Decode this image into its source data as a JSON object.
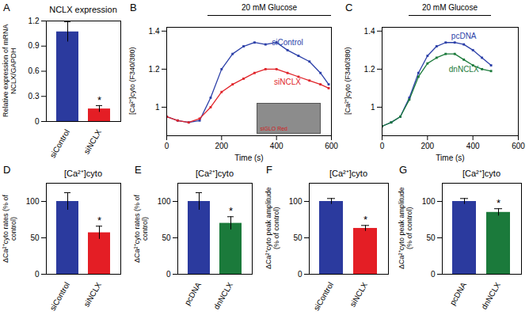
{
  "chart_data": [
    {
      "type": "bar",
      "panel_label": "A",
      "title": "NCLX expression",
      "y_label": "Relative expression of mRNA NCLX/GAPDH",
      "categories": [
        "siControl",
        "siNCLX"
      ],
      "values": [
        1.07,
        0.15
      ],
      "errors": [
        0.12,
        0.04
      ],
      "significance": [
        null,
        "*"
      ],
      "colors": [
        "#2b3a9e",
        "#e41e25"
      ],
      "ylim": [
        0,
        1.2
      ],
      "yticks": [
        0,
        0.3,
        0.6,
        0.9,
        1.2
      ]
    },
    {
      "type": "line",
      "panel_label": "B",
      "y_label": "[Ca²⁺]cyto (F340/380)",
      "x_label": "Time (s)",
      "stimulus": {
        "text": "20 mM Glucose",
        "start": 150,
        "end": 600
      },
      "inset": "siGLO Red",
      "x": [
        0,
        40,
        80,
        120,
        160,
        200,
        240,
        280,
        320,
        360,
        400,
        440,
        480,
        520,
        560,
        590
      ],
      "series": [
        {
          "name": "siControl",
          "color": "#2b3fa8",
          "marker": "square",
          "values": [
            0.95,
            0.93,
            0.92,
            0.93,
            1.05,
            1.2,
            1.28,
            1.32,
            1.34,
            1.33,
            1.34,
            1.3,
            1.27,
            1.24,
            1.18,
            1.12
          ]
        },
        {
          "name": "siNCLX",
          "color": "#e0242a",
          "marker": "square",
          "values": [
            0.95,
            0.93,
            0.92,
            0.94,
            1.0,
            1.08,
            1.12,
            1.15,
            1.18,
            1.2,
            1.2,
            1.18,
            1.16,
            1.14,
            1.12,
            1.1
          ]
        }
      ],
      "xlim": [
        0,
        600
      ],
      "xticks": [
        0,
        200,
        400,
        600
      ],
      "ylim": [
        0.85,
        1.42
      ],
      "yticks": [
        1,
        1.2,
        1.4
      ]
    },
    {
      "type": "line",
      "panel_label": "C",
      "y_label": "[Ca²⁺]cyto (F340/380)",
      "x_label": "Time (s)",
      "stimulus": {
        "text": "20 mM Glucose",
        "start": 120,
        "end": 480
      },
      "x": [
        0,
        40,
        80,
        120,
        160,
        200,
        240,
        280,
        320,
        360,
        400,
        440,
        480
      ],
      "series": [
        {
          "name": "pcDNA",
          "color": "#2b3fa8",
          "marker": "square",
          "values": [
            0.9,
            0.92,
            0.95,
            1.05,
            1.18,
            1.27,
            1.32,
            1.34,
            1.34,
            1.33,
            1.3,
            1.26,
            1.22
          ]
        },
        {
          "name": "dnNCLX",
          "color": "#1b7a3b",
          "marker": "square",
          "values": [
            0.9,
            0.92,
            0.95,
            1.04,
            1.16,
            1.23,
            1.26,
            1.28,
            1.28,
            1.25,
            1.22,
            1.2,
            1.19
          ]
        }
      ],
      "xlim": [
        0,
        600
      ],
      "xticks": [
        0,
        200,
        400,
        600
      ],
      "ylim": [
        0.85,
        1.42
      ],
      "yticks": [
        1,
        1.2,
        1.4
      ]
    },
    {
      "type": "bar",
      "panel_label": "D",
      "title": "[Ca²⁺]cyto",
      "y_label": "ΔCa²⁺cyto rates (% of control)",
      "categories": [
        "siControl",
        "siNCLX"
      ],
      "values": [
        100,
        57
      ],
      "errors": [
        12,
        9
      ],
      "significance": [
        null,
        "*"
      ],
      "colors": [
        "#2b3a9e",
        "#e41e25"
      ],
      "ylim": [
        0,
        125
      ],
      "yticks": [
        0,
        50,
        100
      ]
    },
    {
      "type": "bar",
      "panel_label": "E",
      "title": "[Ca²⁺]cyto",
      "y_label": "ΔCa²⁺cyto rates (% of control)",
      "categories": [
        "pcDNA",
        "dnNCLX"
      ],
      "values": [
        100,
        70
      ],
      "errors": [
        12,
        9
      ],
      "significance": [
        null,
        "*"
      ],
      "colors": [
        "#2b3a9e",
        "#1b7a3b"
      ],
      "ylim": [
        0,
        125
      ],
      "yticks": [
        0,
        50,
        100
      ]
    },
    {
      "type": "bar",
      "panel_label": "F",
      "title": "[Ca²⁺]cyto",
      "y_label": "ΔCa²⁺cyto peak amplitude (% of control)",
      "categories": [
        "siControl",
        "siNCLX"
      ],
      "values": [
        100,
        63
      ],
      "errors": [
        4,
        4
      ],
      "significance": [
        null,
        "*"
      ],
      "colors": [
        "#2b3a9e",
        "#e41e25"
      ],
      "ylim": [
        0,
        125
      ],
      "yticks": [
        0,
        50,
        100
      ]
    },
    {
      "type": "bar",
      "panel_label": "G",
      "title": "[Ca²⁺]cyto",
      "y_label": "ΔCa²⁺cyto peak amplitude (% of control)",
      "categories": [
        "pcDNA",
        "dnNCLX"
      ],
      "values": [
        100,
        85
      ],
      "errors": [
        4,
        5
      ],
      "significance": [
        null,
        "*"
      ],
      "colors": [
        "#2b3a9e",
        "#1b7a3b"
      ],
      "ylim": [
        0,
        125
      ],
      "yticks": [
        0,
        50,
        100
      ]
    }
  ]
}
